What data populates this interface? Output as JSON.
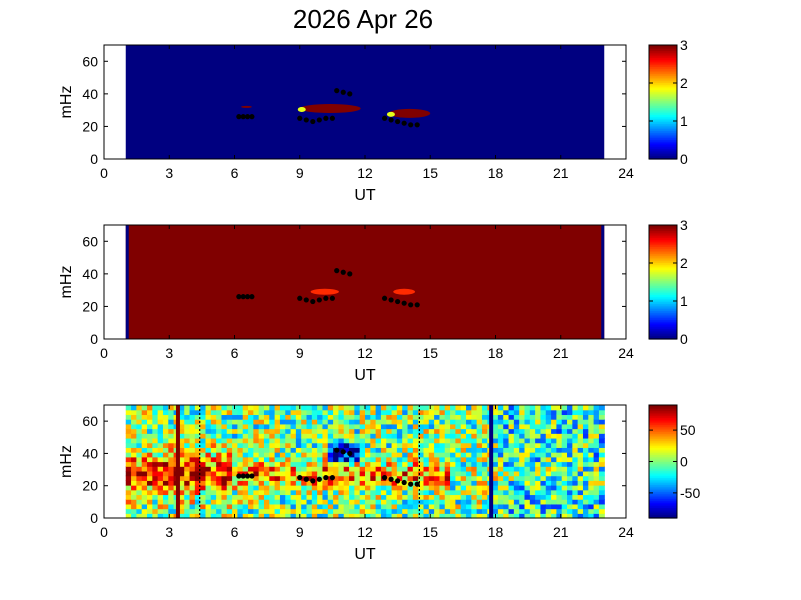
{
  "chart_data": {
    "type": "heatmap",
    "title": "2026 Apr 26",
    "panels": [
      {
        "type": "heatmap",
        "xlabel": "UT",
        "ylabel": "mHz",
        "xlim": [
          0,
          24
        ],
        "ylim": [
          0,
          70
        ],
        "xticks": [
          "0",
          "3",
          "6",
          "9",
          "12",
          "15",
          "18",
          "21",
          "24"
        ],
        "yticks": [
          "0",
          "20",
          "40",
          "60"
        ],
        "data_range_ut": [
          1,
          23
        ],
        "background_value": 0,
        "colorbar": {
          "range": [
            0,
            3
          ],
          "ticks": [
            "0",
            "1",
            "2",
            "3"
          ]
        },
        "features": [
          {
            "ut_start": 6.3,
            "ut_end": 6.8,
            "mhz": 32,
            "value": 3
          },
          {
            "ut_start": 9.0,
            "ut_end": 11.8,
            "mhz": 31,
            "value": 3
          },
          {
            "ut_start": 13.1,
            "ut_end": 15.0,
            "mhz": 28,
            "value": 3
          }
        ],
        "markers": [
          {
            "ut": [
              6.2,
              6.4,
              6.6,
              6.8
            ],
            "mhz": [
              26,
              26,
              26,
              26
            ]
          },
          {
            "ut": [
              9.0,
              9.3,
              9.6,
              9.9,
              10.2,
              10.5
            ],
            "mhz": [
              25,
              24,
              23,
              24,
              25,
              25
            ]
          },
          {
            "ut": [
              10.7,
              11.0,
              11.3
            ],
            "mhz": [
              42,
              41,
              40
            ]
          },
          {
            "ut": [
              12.9,
              13.2,
              13.5,
              13.8,
              14.1,
              14.4
            ],
            "mhz": [
              25,
              24,
              23,
              22,
              21,
              21
            ]
          }
        ]
      },
      {
        "type": "heatmap",
        "xlabel": "UT",
        "ylabel": "mHz",
        "xlim": [
          0,
          24
        ],
        "ylim": [
          0,
          70
        ],
        "xticks": [
          "0",
          "3",
          "6",
          "9",
          "12",
          "15",
          "18",
          "21",
          "24"
        ],
        "yticks": [
          "0",
          "20",
          "40",
          "60"
        ],
        "data_range_ut": [
          1,
          23
        ],
        "background_value": 3,
        "colorbar": {
          "range": [
            0,
            3
          ],
          "ticks": [
            "0",
            "1",
            "2",
            "3"
          ]
        },
        "features": [
          {
            "ut_start": 9.5,
            "ut_end": 10.8,
            "mhz": 29,
            "value": 2.5
          },
          {
            "ut_start": 13.3,
            "ut_end": 14.3,
            "mhz": 29,
            "value": 2.5
          }
        ],
        "markers": [
          {
            "ut": [
              6.2,
              6.4,
              6.6,
              6.8
            ],
            "mhz": [
              26,
              26,
              26,
              26
            ]
          },
          {
            "ut": [
              9.0,
              9.3,
              9.6,
              9.9,
              10.2,
              10.5
            ],
            "mhz": [
              25,
              24,
              23,
              24,
              25,
              25
            ]
          },
          {
            "ut": [
              10.7,
              11.0,
              11.3
            ],
            "mhz": [
              42,
              41,
              40
            ]
          },
          {
            "ut": [
              12.9,
              13.2,
              13.5,
              13.8,
              14.1,
              14.4
            ],
            "mhz": [
              25,
              24,
              23,
              22,
              21,
              21
            ]
          }
        ]
      },
      {
        "type": "heatmap",
        "xlabel": "UT",
        "ylabel": "mHz",
        "xlim": [
          0,
          24
        ],
        "ylim": [
          0,
          70
        ],
        "xticks": [
          "0",
          "3",
          "6",
          "9",
          "12",
          "15",
          "18",
          "21",
          "24"
        ],
        "yticks": [
          "0",
          "20",
          "40",
          "60"
        ],
        "data_range_ut": [
          1,
          23
        ],
        "colorbar": {
          "range": [
            -90,
            90
          ],
          "ticks": [
            "50",
            "0",
            "-50"
          ],
          "tick_values": [
            50,
            0,
            -50
          ]
        },
        "vertical_lines": [
          {
            "ut": 3.4,
            "value": 90,
            "style": "solid"
          },
          {
            "ut": 4.4,
            "style": "dotted"
          },
          {
            "ut": 14.5,
            "style": "dotted"
          },
          {
            "ut": 17.8,
            "value": -90,
            "style": "solid"
          }
        ],
        "markers": [
          {
            "ut": [
              6.2,
              6.4,
              6.6,
              6.8
            ],
            "mhz": [
              26,
              26,
              26,
              26
            ]
          },
          {
            "ut": [
              9.0,
              9.3,
              9.6,
              9.9,
              10.2,
              10.5
            ],
            "mhz": [
              25,
              24,
              23,
              24,
              25,
              25
            ]
          },
          {
            "ut": [
              10.7,
              11.0,
              11.3
            ],
            "mhz": [
              42,
              41,
              40
            ]
          },
          {
            "ut": [
              12.9,
              13.2,
              13.5,
              13.8,
              14.1,
              14.4
            ],
            "mhz": [
              25,
              24,
              23,
              22,
              21,
              21
            ]
          }
        ]
      }
    ]
  }
}
